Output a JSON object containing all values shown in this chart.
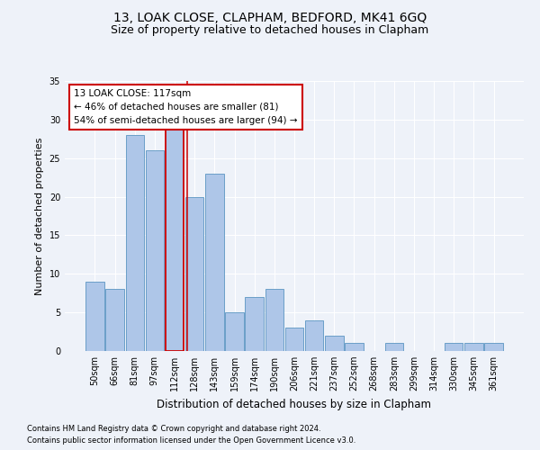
{
  "title1": "13, LOAK CLOSE, CLAPHAM, BEDFORD, MK41 6GQ",
  "title2": "Size of property relative to detached houses in Clapham",
  "xlabel": "Distribution of detached houses by size in Clapham",
  "ylabel": "Number of detached properties",
  "footnote1": "Contains HM Land Registry data © Crown copyright and database right 2024.",
  "footnote2": "Contains public sector information licensed under the Open Government Licence v3.0.",
  "categories": [
    "50sqm",
    "66sqm",
    "81sqm",
    "97sqm",
    "112sqm",
    "128sqm",
    "143sqm",
    "159sqm",
    "174sqm",
    "190sqm",
    "206sqm",
    "221sqm",
    "237sqm",
    "252sqm",
    "268sqm",
    "283sqm",
    "299sqm",
    "314sqm",
    "330sqm",
    "345sqm",
    "361sqm"
  ],
  "values": [
    9,
    8,
    28,
    26,
    29,
    20,
    23,
    5,
    7,
    8,
    3,
    4,
    2,
    1,
    0,
    1,
    0,
    0,
    1,
    1,
    1
  ],
  "bar_color": "#aec6e8",
  "bar_edge_color": "#6a9fc8",
  "highlight_bar_index": 4,
  "highlight_bar_edge_color": "#cc0000",
  "vline_x": 4.65,
  "vline_color": "#cc0000",
  "ylim": [
    0,
    35
  ],
  "yticks": [
    0,
    5,
    10,
    15,
    20,
    25,
    30,
    35
  ],
  "annotation_title": "13 LOAK CLOSE: 117sqm",
  "annotation_line1": "← 46% of detached houses are smaller (81)",
  "annotation_line2": "54% of semi-detached houses are larger (94) →",
  "annotation_box_color": "#ffffff",
  "annotation_box_edge_color": "#cc0000",
  "background_color": "#eef2f9",
  "grid_color": "#ffffff",
  "title1_fontsize": 10,
  "title2_fontsize": 9,
  "xlabel_fontsize": 8.5,
  "ylabel_fontsize": 8,
  "tick_fontsize": 7,
  "annotation_fontsize": 7.5
}
